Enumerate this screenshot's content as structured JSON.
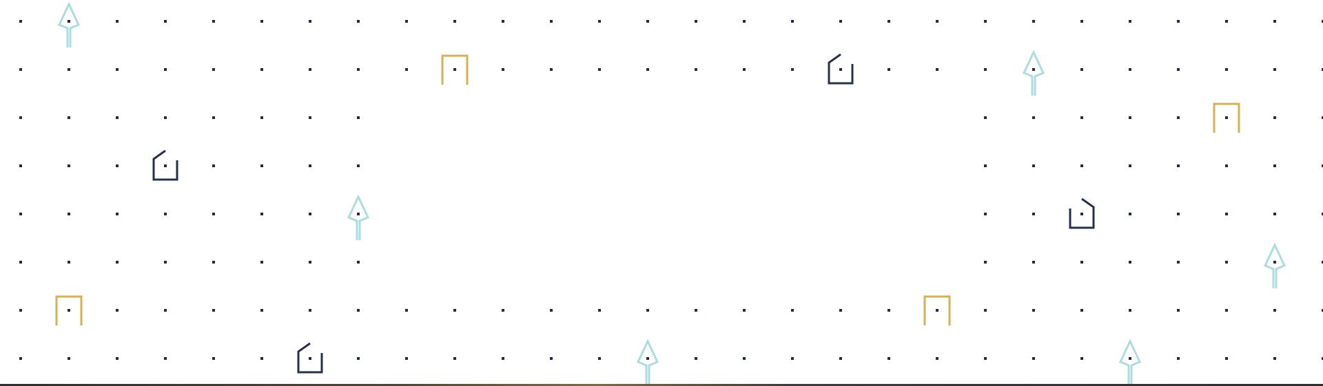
{
  "pattern": {
    "dot_color": "#1f2a4d",
    "icon_colors": {
      "navy": "#25304f",
      "gold": "#d8b04c",
      "teal": "#a9dde0"
    },
    "icons": [
      {
        "type": "arrow-up",
        "color": "teal"
      },
      {
        "type": "arch",
        "color": "gold"
      },
      {
        "type": "house",
        "color": "navy"
      },
      {
        "type": "arrow-up",
        "color": "teal"
      },
      {
        "type": "arch",
        "color": "gold"
      },
      {
        "type": "house",
        "color": "navy"
      },
      {
        "type": "arrow-up",
        "color": "teal"
      },
      {
        "type": "house-mirrored",
        "color": "navy"
      },
      {
        "type": "arrow-up",
        "color": "teal"
      },
      {
        "type": "arch",
        "color": "gold"
      },
      {
        "type": "arch",
        "color": "gold"
      },
      {
        "type": "house",
        "color": "navy"
      },
      {
        "type": "arrow-up",
        "color": "teal"
      },
      {
        "type": "arrow-up",
        "color": "teal"
      }
    ]
  },
  "bottom_border": {
    "color": "#3a3a3a"
  }
}
